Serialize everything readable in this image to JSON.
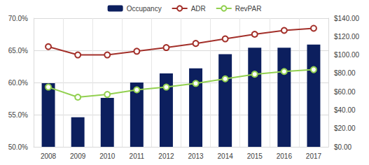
{
  "chart_data": {
    "type": "bar",
    "categories": [
      "2008",
      "2009",
      "2010",
      "2011",
      "2012",
      "2013",
      "2014",
      "2015",
      "2016",
      "2017"
    ],
    "series": [
      {
        "name": "Occupancy",
        "type": "bar",
        "color": "#0c1f5e",
        "values": [
          59.9,
          54.6,
          57.6,
          60.0,
          61.4,
          62.2,
          64.4,
          65.4,
          65.4,
          65.9
        ]
      },
      {
        "name": "ADR",
        "type": "line",
        "axis": "y2",
        "color": "#a3302a",
        "marker": "circle",
        "values": [
          109,
          100,
          100,
          104,
          108,
          112.5,
          117.5,
          122.5,
          126.7,
          129
        ]
      },
      {
        "name": "RevPAR",
        "type": "line",
        "axis": "y2",
        "color": "#92d050",
        "marker": "circle",
        "values": [
          65,
          54,
          57,
          62,
          65,
          69,
          74,
          79,
          82,
          84
        ]
      }
    ],
    "ylim": [
      50,
      70
    ],
    "yticks": [
      {
        "value": 50,
        "label": "50.0%"
      },
      {
        "value": 55,
        "label": "55.0%"
      },
      {
        "value": 60,
        "label": "60.0%"
      },
      {
        "value": 65,
        "label": "65.0%"
      },
      {
        "value": 70,
        "label": "70.0%"
      }
    ],
    "y2lim": [
      0,
      140
    ],
    "y2ticks": [
      {
        "value": 0,
        "label": "$0.00"
      },
      {
        "value": 20,
        "label": "$20.00"
      },
      {
        "value": 40,
        "label": "$40.00"
      },
      {
        "value": 60,
        "label": "$60.00"
      },
      {
        "value": 80,
        "label": "$80.00"
      },
      {
        "value": 100,
        "label": "$100.00"
      },
      {
        "value": 120,
        "label": "$120.00"
      },
      {
        "value": 140,
        "label": "$140.00"
      }
    ],
    "grid": true,
    "legend": "top"
  }
}
